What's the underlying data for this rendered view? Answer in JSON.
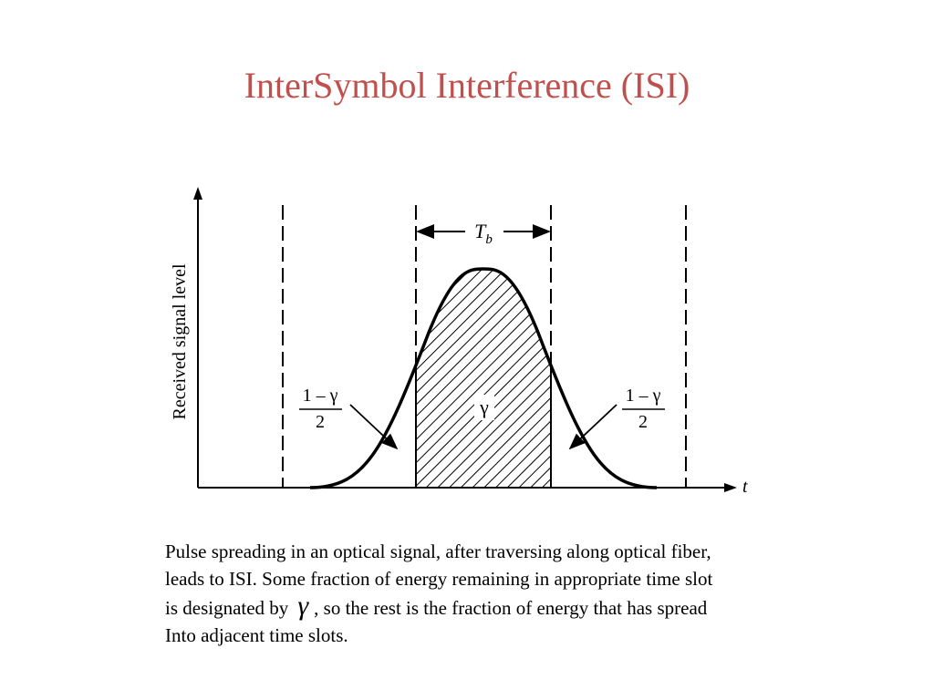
{
  "slide": {
    "title": "InterSymbol Interference (ISI)"
  },
  "diagram": {
    "ylabel": "Received signal level",
    "xlabel": "t",
    "bit_period_label": "T",
    "bit_period_subscript": "b",
    "center_label": "γ",
    "left_fraction": {
      "numerator": "1 – γ",
      "denominator": "2"
    },
    "right_fraction": {
      "numerator": "1 – γ",
      "denominator": "2"
    }
  },
  "caption": {
    "line1": "Pulse spreading in an optical signal, after traversing along optical fiber,",
    "line2": "leads to ISI. Some fraction of energy remaining in appropriate time slot",
    "line3_before": "is designated by",
    "gamma_symbol": "γ",
    "line3_after": ", so the rest is the fraction of energy that has spread",
    "line4": "Into adjacent time slots."
  }
}
